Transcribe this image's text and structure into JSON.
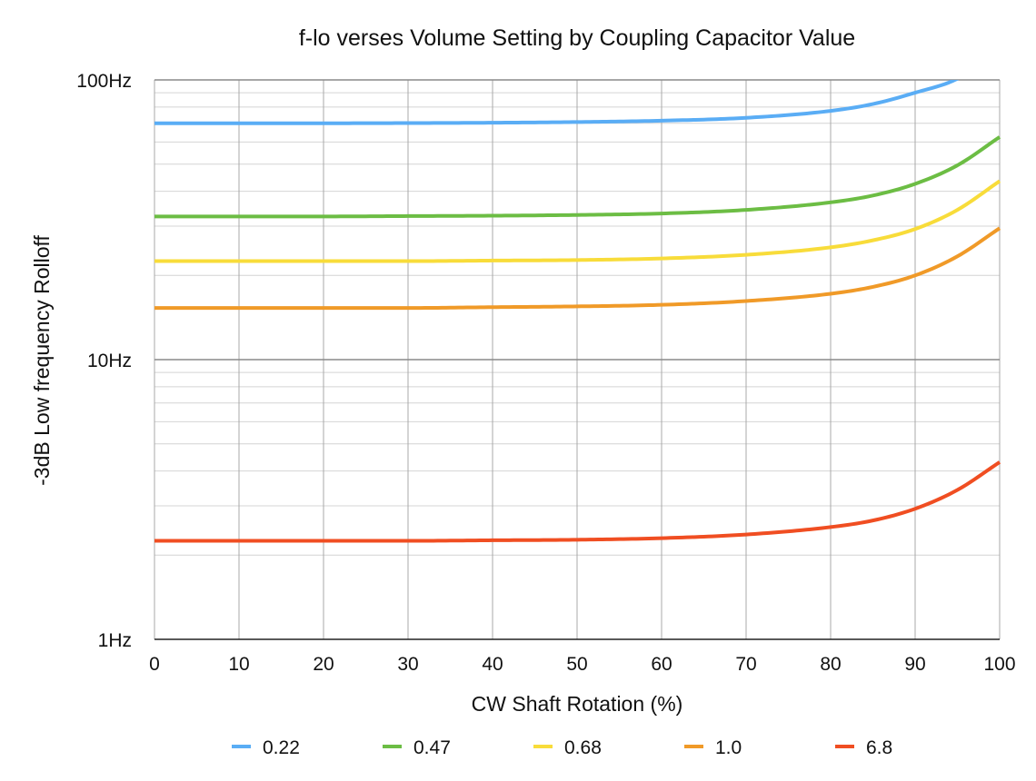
{
  "chart_data": {
    "type": "line",
    "title": "f-lo verses Volume Setting by Coupling Capacitor Value",
    "xlabel": "CW Shaft Rotation (%)",
    "ylabel": "-3dB Low frequency Rolloff",
    "xlim": [
      0,
      100
    ],
    "ylim": [
      1,
      100
    ],
    "yscale": "log",
    "grid": true,
    "legend_position": "bottom",
    "x_ticks": [
      0,
      10,
      20,
      30,
      40,
      50,
      60,
      70,
      80,
      90,
      100
    ],
    "x_tick_labels": [
      "0",
      "10",
      "20",
      "30",
      "40",
      "50",
      "60",
      "70",
      "80",
      "90",
      "100"
    ],
    "y_ticks": [
      1,
      10,
      100
    ],
    "y_tick_labels": [
      "1Hz",
      "10Hz",
      "100Hz"
    ],
    "x": [
      0,
      10,
      20,
      30,
      40,
      50,
      60,
      70,
      80,
      85,
      90,
      95,
      100
    ],
    "series": [
      {
        "name": "0.22",
        "color": "#5aadf5",
        "values": [
          70,
          70,
          70,
          70.1,
          70.3,
          70.7,
          71.5,
          73.2,
          77.5,
          82,
          90,
          101,
          128
        ]
      },
      {
        "name": "0.47",
        "color": "#6cbd44",
        "values": [
          32.5,
          32.5,
          32.5,
          32.6,
          32.7,
          32.9,
          33.3,
          34.3,
          36.5,
          38.6,
          42.5,
          49.5,
          62.5
        ]
      },
      {
        "name": "0.68",
        "color": "#f8dc3a",
        "values": [
          22.5,
          22.5,
          22.5,
          22.5,
          22.6,
          22.7,
          23.0,
          23.7,
          25.2,
          26.7,
          29.3,
          34.3,
          43.5
        ]
      },
      {
        "name": "1.0",
        "color": "#f09a28",
        "values": [
          15.3,
          15.3,
          15.3,
          15.3,
          15.4,
          15.5,
          15.7,
          16.2,
          17.2,
          18.2,
          20.0,
          23.4,
          29.5
        ]
      },
      {
        "name": "6.8",
        "color": "#f04e22",
        "values": [
          2.25,
          2.25,
          2.25,
          2.25,
          2.26,
          2.27,
          2.3,
          2.37,
          2.52,
          2.66,
          2.93,
          3.42,
          4.3
        ]
      }
    ]
  }
}
